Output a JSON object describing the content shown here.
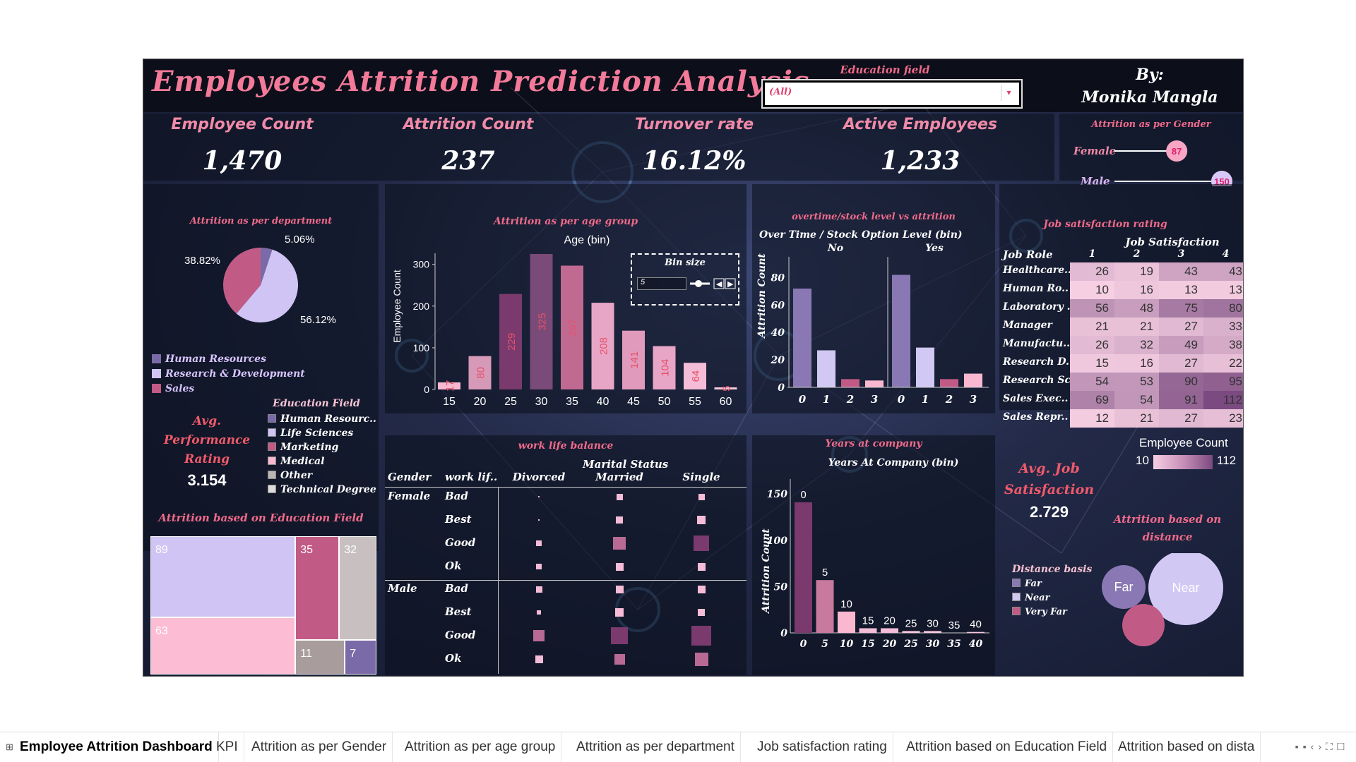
{
  "title": "Employees Attrition Prediction Analysis",
  "filter": {
    "label": "Education field",
    "value": "(All)"
  },
  "author": {
    "by": "By:",
    "name": "Monika Mangla"
  },
  "kpis": [
    {
      "label": "Employee Count",
      "value": "1,470"
    },
    {
      "label": "Attrition Count",
      "value": "237"
    },
    {
      "label": "Turnover rate",
      "value": "16.12%"
    },
    {
      "label": "Active Employees",
      "value": "1,233"
    }
  ],
  "gender": {
    "title": "Attrition as per Gender",
    "female_label": "Female",
    "female": 87,
    "male_label": "Male",
    "male": 150,
    "max": 150
  },
  "department": {
    "title": "Attrition as per department",
    "slices": [
      {
        "name": "Human Resources",
        "value": 5.06,
        "label": "5.06%",
        "color": "#7b6aa8"
      },
      {
        "name": "Research & Development",
        "value": 56.12,
        "label": "56.12%",
        "color": "#cfc4f4"
      },
      {
        "name": "Sales",
        "value": 38.82,
        "label": "38.82%",
        "color": "#c25a86"
      }
    ]
  },
  "performance": {
    "label": "Avg. Performance Rating",
    "value": "3.154"
  },
  "education_legend": {
    "title": "Education Field",
    "items": [
      {
        "name": "Human Resourc..",
        "color": "#7b6aa8"
      },
      {
        "name": "Life Sciences",
        "color": "#cfc4f4"
      },
      {
        "name": "Marketing",
        "color": "#c25a86"
      },
      {
        "name": "Medical",
        "color": "#f9b8d0"
      },
      {
        "name": "Other",
        "color": "#bcb4b4"
      },
      {
        "name": "Technical Degree",
        "color": "#dcdcdc"
      }
    ]
  },
  "edu_tree": {
    "title": "Attrition based on Education Field",
    "cells": [
      {
        "v": "89",
        "c": "#cfc4f4"
      },
      {
        "v": "63",
        "c": "#fbbcd4"
      },
      {
        "v": "35",
        "c": "#c25a86"
      },
      {
        "v": "32",
        "c": "#c8c0c0"
      },
      {
        "v": "11",
        "c": "#a89c9c"
      },
      {
        "v": "7",
        "c": "#7b6aa8"
      }
    ]
  },
  "age_chart": {
    "title": "Attrition as per age group",
    "axis_title": "Age (bin)",
    "ylabel": "Employee Count",
    "bin_label": "Bin size",
    "bin_value": "5",
    "x": [
      15,
      20,
      25,
      30,
      35,
      40,
      45,
      50,
      55,
      60
    ],
    "values": [
      17,
      80,
      229,
      325,
      297,
      208,
      141,
      104,
      64,
      5
    ],
    "colors": [
      "#f9b8d0",
      "#d69ab8",
      "#7a3a6e",
      "#7a4a78",
      "#c06a92",
      "#e8a6c6",
      "#e09abc",
      "#e8a6c6",
      "#f4bcd6",
      "#f9c8dc"
    ],
    "yticks": [
      0,
      100,
      200,
      300
    ],
    "ymax": 330
  },
  "overtime": {
    "title": "overtime/stock level vs attrition",
    "header": "Over Time  /  Stock Option Level (bin)",
    "groups": [
      "No",
      "Yes"
    ],
    "ylabel": "Attrition Count",
    "x": [
      "0",
      "1",
      "2",
      "3"
    ],
    "no": [
      72,
      27,
      6,
      5
    ],
    "yes": [
      82,
      29,
      6,
      10
    ],
    "colors": [
      "#8a78b4",
      "#d2c8f4",
      "#c25a86",
      "#f9b8d0"
    ],
    "yticks": [
      0,
      20,
      40,
      60,
      80
    ],
    "ymax": 90
  },
  "satisfaction": {
    "title": "Job satisfaction rating",
    "col_title": "Job Satisfaction",
    "row_header": "Job Role",
    "cols": [
      "1",
      "2",
      "3",
      "4"
    ],
    "rows": [
      {
        "role": "Healthcare..",
        "vals": [
          26,
          19,
          43,
          43
        ]
      },
      {
        "role": "Human Ro..",
        "vals": [
          10,
          16,
          13,
          13
        ]
      },
      {
        "role": "Laboratory ..",
        "vals": [
          56,
          48,
          75,
          80
        ]
      },
      {
        "role": "Manager",
        "vals": [
          21,
          21,
          27,
          33
        ]
      },
      {
        "role": "Manufactu..",
        "vals": [
          26,
          32,
          49,
          38
        ]
      },
      {
        "role": "Research D..",
        "vals": [
          15,
          16,
          27,
          22
        ]
      },
      {
        "role": "Research Sc..",
        "vals": [
          54,
          53,
          90,
          95
        ]
      },
      {
        "role": "Sales Exec..",
        "vals": [
          69,
          54,
          91,
          112
        ]
      },
      {
        "role": "Sales Repr..",
        "vals": [
          12,
          21,
          27,
          23
        ]
      }
    ],
    "legend_title": "Employee Count",
    "min": 10,
    "max": 112
  },
  "worklife": {
    "title": "work life balance",
    "col_title": "Marital Status",
    "h_gender": "Gender",
    "h_wlb": "work lif..",
    "cols": [
      "Divorced",
      "Married",
      "Single"
    ],
    "groups": [
      {
        "gender": "Female",
        "rows": [
          {
            "wlb": "Bad",
            "s": [
              2,
              9,
              9
            ]
          },
          {
            "wlb": "Best",
            "s": [
              2,
              10,
              12
            ]
          },
          {
            "wlb": "Good",
            "s": [
              8,
              18,
              22
            ]
          },
          {
            "wlb": "Ok",
            "s": [
              8,
              11,
              11
            ]
          }
        ]
      },
      {
        "gender": "Male",
        "rows": [
          {
            "wlb": "Bad",
            "s": [
              9,
              11,
              11
            ]
          },
          {
            "wlb": "Best",
            "s": [
              6,
              12,
              10
            ]
          },
          {
            "wlb": "Good",
            "s": [
              16,
              24,
              28
            ]
          },
          {
            "wlb": "Ok",
            "s": [
              11,
              15,
              19
            ]
          }
        ]
      }
    ]
  },
  "years": {
    "title": "Years at company",
    "axis_title": "Years At Company (bin)",
    "ylabel": "Attrition Count",
    "x": [
      0,
      5,
      10,
      15,
      20,
      25,
      30,
      35,
      40
    ],
    "values": [
      141,
      57,
      23,
      5,
      5,
      2,
      2,
      0,
      1
    ],
    "labels": [
      "0",
      "5",
      "10",
      "15",
      "20",
      "25",
      "30",
      "35",
      "40"
    ],
    "colors": [
      "#7a3a6e",
      "#c87a9e",
      "#f9b8d0",
      "#f4bcd6",
      "#f4bcd6",
      "#f9c8dc",
      "#f9c8dc",
      "#f9c8dc",
      "#f9c8dc"
    ],
    "yticks": [
      0,
      50,
      100,
      150
    ],
    "ymax": 160
  },
  "job_sat": {
    "label": "Avg. Job Satisfaction",
    "value": "2.729"
  },
  "distance": {
    "title": "Attrition based on distance",
    "legend_title": "Distance basis",
    "items": [
      {
        "name": "Far",
        "color": "#8a78b4"
      },
      {
        "name": "Near",
        "color": "#d2c8f4"
      },
      {
        "name": "Very Far",
        "color": "#c25a86"
      }
    ],
    "bubbles": [
      {
        "name": "Far",
        "label": "Far"
      },
      {
        "name": "Near",
        "label": "Near"
      },
      {
        "name": "Very Far",
        "label": ""
      }
    ]
  },
  "tabs": [
    "Employee Attrition Dashboard",
    "KPI",
    "Attrition as per Gender",
    "Attrition as per age group",
    "Attrition as per department",
    "Job satisfaction rating",
    "Attrition based on Education Field",
    "Attrition based on dista"
  ]
}
